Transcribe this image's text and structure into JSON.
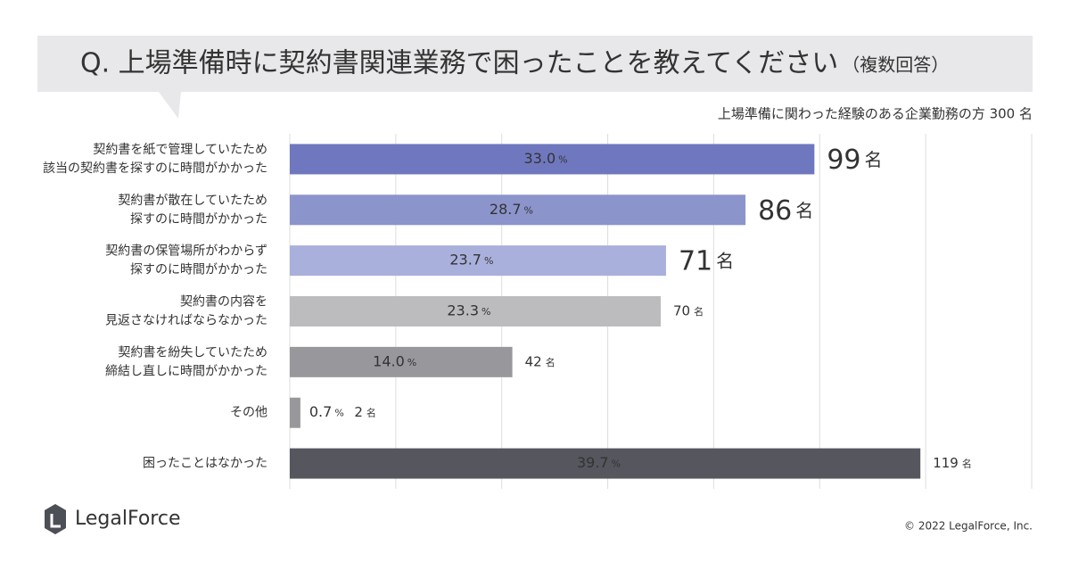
{
  "chart_data": {
    "type": "bar",
    "orientation": "horizontal",
    "title": "Q. 上場準備時に契約書関連業務で困ったことを教えてください",
    "title_note": "（複数回答）",
    "subtitle": "上場準備に関わった経験のある企業勤務の方 300 名",
    "categories": [
      [
        "契約書を紙で管理していたため",
        "該当の契約書を探すのに時間がかかった"
      ],
      [
        "契約書が散在していたため",
        "探すのに時間がかかった"
      ],
      [
        "契約書の保管場所がわからず",
        "探すのに時間がかかった"
      ],
      [
        "契約書の内容を",
        "見返さなければならなかった"
      ],
      [
        "契約書を紛失していたため",
        "締結し直しに時間がかかった"
      ],
      [
        "その他"
      ],
      [
        "困ったことはなかった"
      ]
    ],
    "values": [
      99,
      86,
      71,
      70,
      42,
      2,
      119
    ],
    "unit": "名",
    "percent_labels": [
      "33.0",
      "28.7",
      "23.7",
      "23.3",
      "14.0",
      "0.7",
      "39.7"
    ],
    "percent_unit": "%",
    "colors": [
      "#6f78be",
      "#8c94cc",
      "#aab0dc",
      "#bcbcbf",
      "#98989c",
      "#98989c",
      "#55565e"
    ],
    "xlim": [
      0,
      140
    ],
    "xticks": [
      0,
      20,
      40,
      60,
      80,
      100,
      120,
      140
    ],
    "grid": true,
    "logo": "LegalForce",
    "copyright": "© 2022 LegalForce, Inc."
  }
}
